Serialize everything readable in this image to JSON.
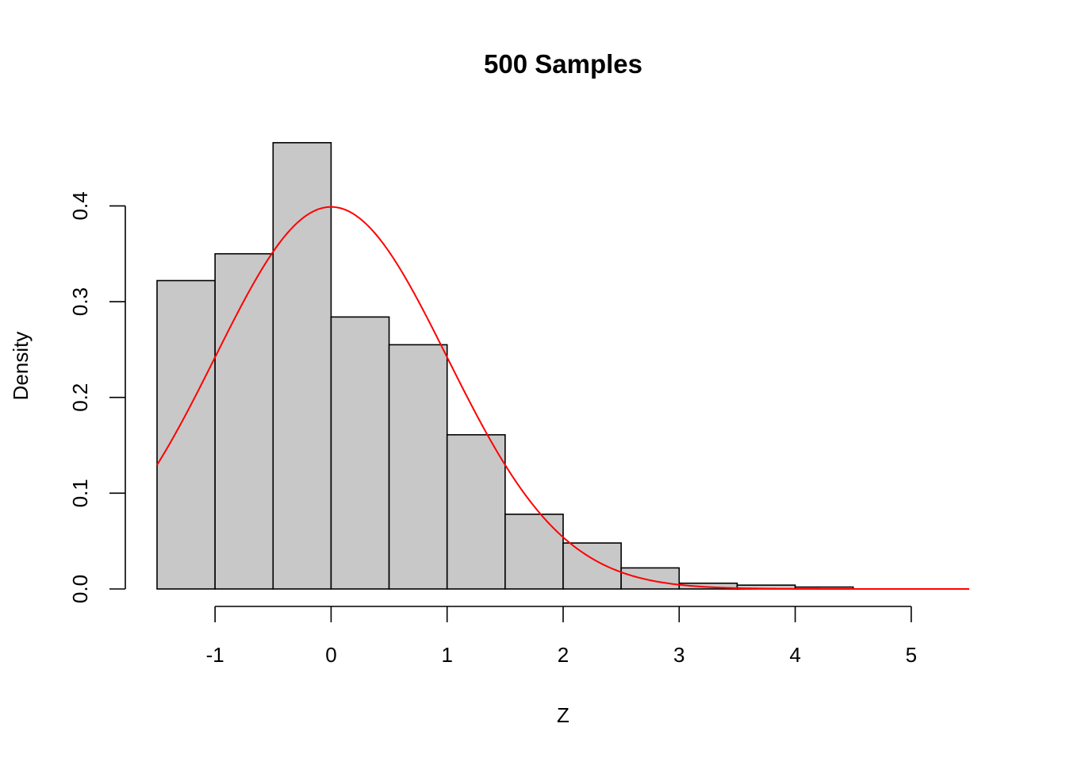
{
  "chart_data": {
    "type": "bar",
    "title": "500 Samples",
    "xlabel": "Z",
    "ylabel": "Density",
    "xlim": [
      -1.5,
      5.5
    ],
    "ylim": [
      0,
      0.47
    ],
    "x_ticks": [
      -1,
      0,
      1,
      2,
      3,
      4,
      5
    ],
    "x_tick_labels": [
      "-1",
      "0",
      "1",
      "2",
      "3",
      "4",
      "5"
    ],
    "y_ticks": [
      0.0,
      0.1,
      0.2,
      0.3,
      0.4
    ],
    "y_tick_labels": [
      "0.0",
      "0.1",
      "0.2",
      "0.3",
      "0.4"
    ],
    "bin_edges": [
      -1.5,
      -1.0,
      -0.5,
      0.0,
      0.5,
      1.0,
      1.5,
      2.0,
      2.5,
      3.0,
      3.5,
      4.0,
      4.5,
      5.0,
      5.5
    ],
    "values": [
      0.322,
      0.35,
      0.466,
      0.284,
      0.255,
      0.161,
      0.078,
      0.048,
      0.022,
      0.006,
      0.004,
      0.002,
      0.0,
      0.0
    ],
    "bar_fill": "#c8c8c8",
    "overlay": {
      "type": "line",
      "function": "standard normal density",
      "mean": 0,
      "sd": 1,
      "color": "#ff0000"
    },
    "grid": false,
    "legend": "none"
  }
}
